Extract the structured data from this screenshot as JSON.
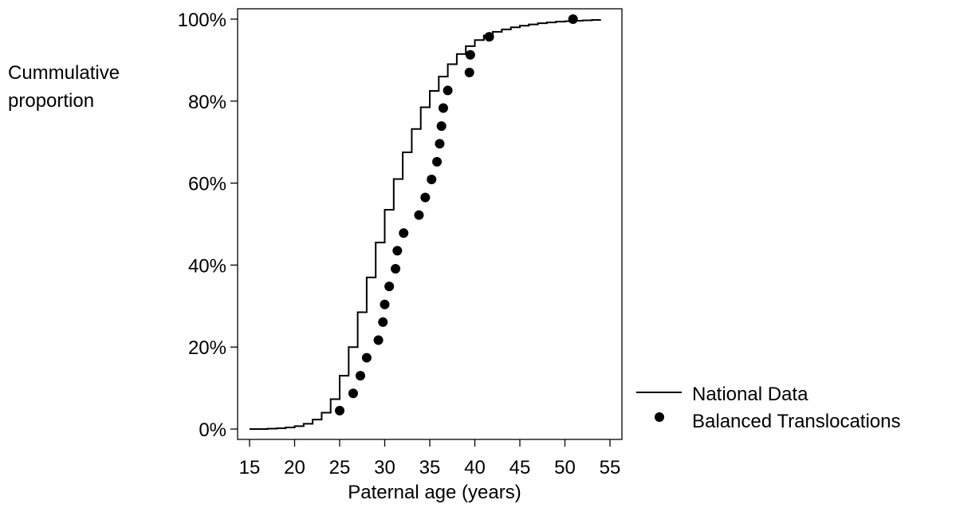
{
  "chart_data": {
    "type": "line",
    "ylabel_lines": [
      "Cummulative",
      "proportion"
    ],
    "xlabel": "Paternal age (years)",
    "xlim": [
      14,
      56
    ],
    "ylim": [
      0,
      100
    ],
    "xticks": [
      15,
      20,
      25,
      30,
      35,
      40,
      45,
      50,
      55
    ],
    "yticks": [
      0,
      20,
      40,
      60,
      80,
      100
    ],
    "ytick_labels": [
      "0%",
      "20%",
      "40%",
      "60%",
      "80%",
      "100%"
    ],
    "grid": false,
    "legend_position": "bottom-right-outside",
    "series": [
      {
        "name": "National Data",
        "style": "step-line",
        "color": "#000000",
        "points": [
          [
            15,
            0
          ],
          [
            16,
            0
          ],
          [
            17,
            0.1
          ],
          [
            18,
            0.2
          ],
          [
            19,
            0.4
          ],
          [
            20,
            0.7
          ],
          [
            21,
            1.3
          ],
          [
            22,
            2.3
          ],
          [
            23,
            4.0
          ],
          [
            24,
            7.3
          ],
          [
            25,
            13.0
          ],
          [
            26,
            20.0
          ],
          [
            27,
            28.5
          ],
          [
            28,
            37.0
          ],
          [
            29,
            45.5
          ],
          [
            30,
            53.5
          ],
          [
            31,
            61.0
          ],
          [
            32,
            67.5
          ],
          [
            33,
            73.2
          ],
          [
            34,
            78.5
          ],
          [
            35,
            82.5
          ],
          [
            36,
            86.0
          ],
          [
            37,
            89.0
          ],
          [
            38,
            91.5
          ],
          [
            39,
            93.4
          ],
          [
            40,
            94.9
          ],
          [
            41,
            96.0
          ],
          [
            42,
            96.9
          ],
          [
            43,
            97.5
          ],
          [
            44,
            98.0
          ],
          [
            45,
            98.4
          ],
          [
            46,
            98.7
          ],
          [
            47,
            99.0
          ],
          [
            48,
            99.2
          ],
          [
            49,
            99.4
          ],
          [
            50,
            99.5
          ],
          [
            51,
            99.6
          ],
          [
            52,
            99.7
          ],
          [
            53,
            99.8
          ],
          [
            54,
            99.8
          ]
        ]
      },
      {
        "name": "Balanced Translocations",
        "style": "markers",
        "color": "#000000",
        "points": [
          [
            25,
            4.5
          ],
          [
            26.5,
            8.7
          ],
          [
            27.3,
            13.0
          ],
          [
            28,
            17.4
          ],
          [
            29.3,
            21.7
          ],
          [
            29.8,
            26.1
          ],
          [
            30,
            30.4
          ],
          [
            30.5,
            34.8
          ],
          [
            31.2,
            39.1
          ],
          [
            31.4,
            43.5
          ],
          [
            32.1,
            47.8
          ],
          [
            33.8,
            52.2
          ],
          [
            34.5,
            56.5
          ],
          [
            35.2,
            60.9
          ],
          [
            35.8,
            65.2
          ],
          [
            36.1,
            69.6
          ],
          [
            36.3,
            73.9
          ],
          [
            36.5,
            78.3
          ],
          [
            37,
            82.6
          ],
          [
            39.4,
            87.0
          ],
          [
            39.5,
            91.3
          ],
          [
            41.6,
            95.7
          ],
          [
            50.9,
            100
          ]
        ]
      }
    ]
  }
}
